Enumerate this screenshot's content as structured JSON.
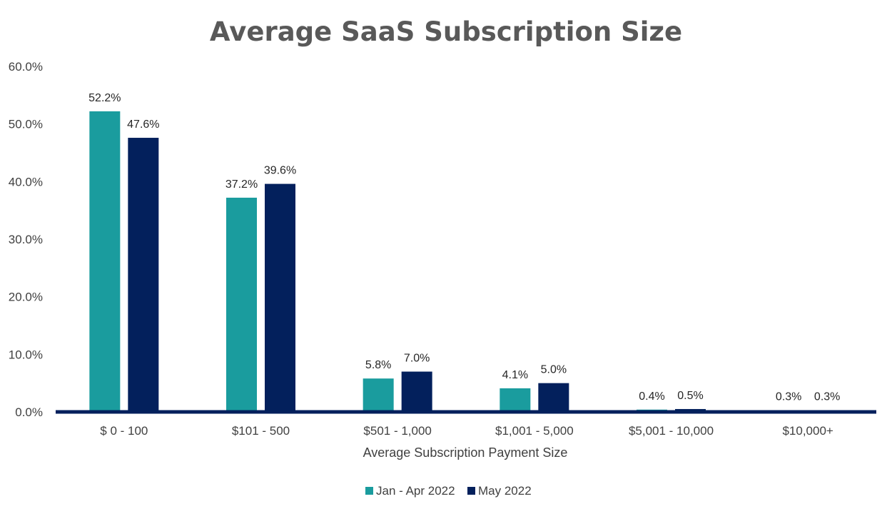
{
  "chart_data": {
    "type": "bar",
    "title": "Average SaaS Subscription Size",
    "xlabel": "Average Subscription Payment Size",
    "ylabel": "",
    "ylim": [
      0,
      60
    ],
    "ytick_values": [
      0,
      10,
      20,
      30,
      40,
      50,
      60
    ],
    "yticks": [
      "0.0%",
      "10.0%",
      "20.0%",
      "30.0%",
      "40.0%",
      "50.0%",
      "60.0%"
    ],
    "grid": false,
    "legend_position": "bottom-center",
    "categories": [
      "$ 0 - 100",
      "$101 - 500",
      "$501 - 1,000",
      "$1,001 - 5,000",
      "$5,001 - 10,000",
      "$10,000+"
    ],
    "series": [
      {
        "name": "Jan - Apr 2022",
        "color": "#1A9C9E",
        "values": [
          52.2,
          37.2,
          5.8,
          4.1,
          0.4,
          0.3
        ],
        "labels": [
          "52.2%",
          "37.2%",
          "5.8%",
          "4.1%",
          "0.4%",
          "0.3%"
        ]
      },
      {
        "name": "May 2022",
        "color": "#03205C",
        "values": [
          47.6,
          39.6,
          7.0,
          5.0,
          0.5,
          0.3
        ],
        "labels": [
          "47.6%",
          "39.6%",
          "7.0%",
          "5.0%",
          "0.5%",
          "0.3%"
        ]
      }
    ],
    "axis_color": "#03205C"
  }
}
